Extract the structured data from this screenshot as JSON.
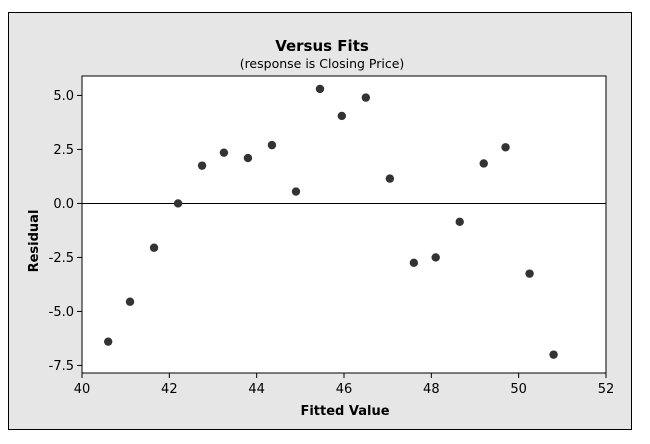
{
  "chart_data": {
    "type": "scatter",
    "title": "Versus Fits",
    "subtitle": "(response is Closing Price)",
    "xlabel": "Fitted Value",
    "ylabel": "Residual",
    "xlim": [
      40,
      52
    ],
    "ylim": [
      -7.5,
      5.5
    ],
    "xticks": [
      "40",
      "42",
      "44",
      "46",
      "48",
      "50",
      "52"
    ],
    "xtick_values": [
      40,
      42,
      44,
      46,
      48,
      50,
      52
    ],
    "yticks": [
      "5.0",
      "2.5",
      "0.0",
      "-2.5",
      "-5.0",
      "-7.5"
    ],
    "ytick_values": [
      5.0,
      2.5,
      0.0,
      -2.5,
      -5.0,
      -7.5
    ],
    "reference_line_y": 0,
    "grid": false,
    "marker_color": "#333333",
    "points": [
      {
        "x": 40.6,
        "y": -6.4
      },
      {
        "x": 41.1,
        "y": -4.55
      },
      {
        "x": 41.65,
        "y": -2.05
      },
      {
        "x": 42.2,
        "y": 0.0
      },
      {
        "x": 42.75,
        "y": 1.75
      },
      {
        "x": 43.25,
        "y": 2.35
      },
      {
        "x": 43.8,
        "y": 2.1
      },
      {
        "x": 44.35,
        "y": 2.7
      },
      {
        "x": 44.9,
        "y": 0.55
      },
      {
        "x": 45.45,
        "y": 5.3
      },
      {
        "x": 45.95,
        "y": 4.05
      },
      {
        "x": 46.5,
        "y": 4.9
      },
      {
        "x": 47.05,
        "y": 1.15
      },
      {
        "x": 47.6,
        "y": -2.75
      },
      {
        "x": 48.1,
        "y": -2.5
      },
      {
        "x": 48.65,
        "y": -0.85
      },
      {
        "x": 49.2,
        "y": 1.85
      },
      {
        "x": 49.7,
        "y": 2.6
      },
      {
        "x": 50.25,
        "y": -3.25
      },
      {
        "x": 50.8,
        "y": -7.0
      }
    ]
  }
}
